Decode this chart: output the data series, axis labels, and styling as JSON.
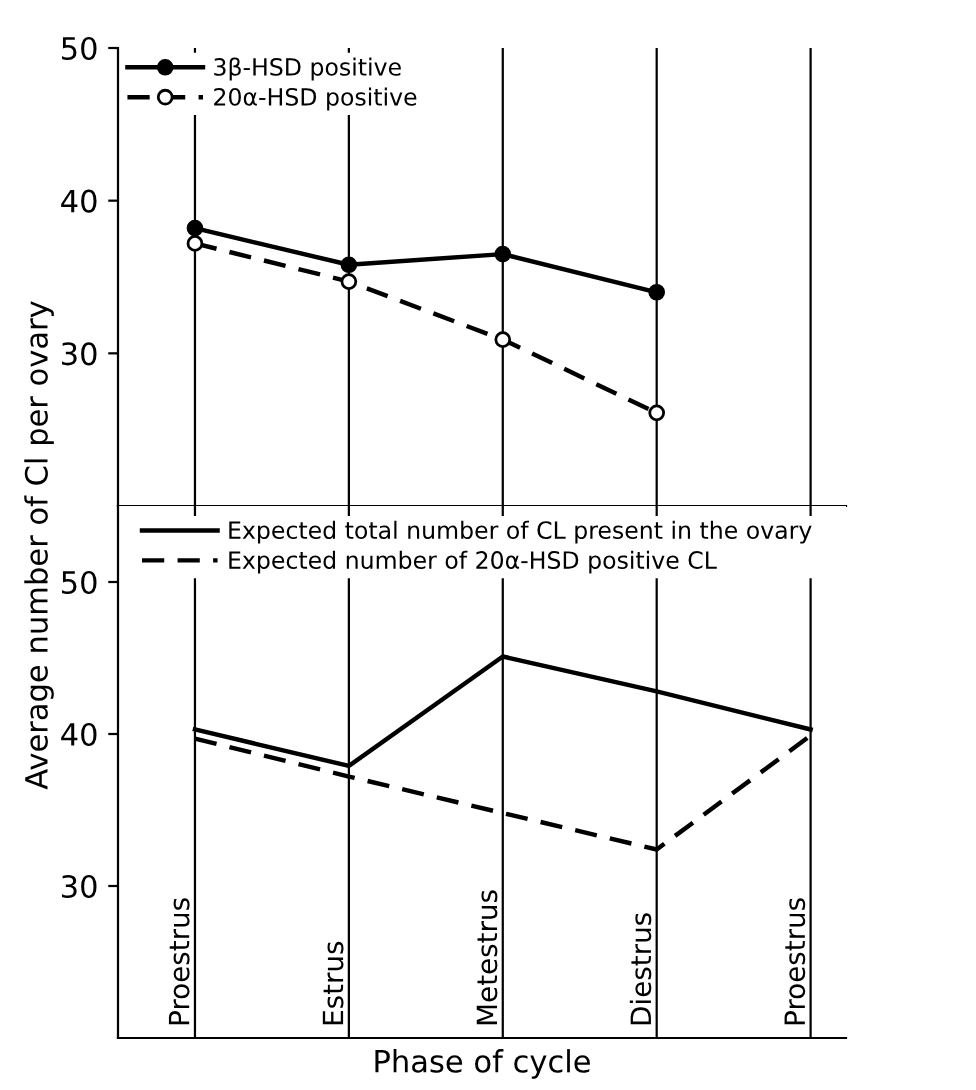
{
  "chart_data": [
    {
      "type": "line",
      "categories": [
        null,
        null,
        null,
        null,
        null
      ],
      "ylim": [
        20,
        50
      ],
      "yticks": [
        30,
        40,
        50
      ],
      "tick_labels": "y",
      "grid": "x",
      "legend": "top left",
      "marker": "circle",
      "series": [
        {
          "name": "3β-HSD positive",
          "color": "#000000",
          "line_style": "solid",
          "values": [
            38.2,
            35.8,
            36.5,
            34.0,
            null
          ]
        },
        {
          "name": "20α-HSD positive",
          "color": "#000000",
          "line_style": "dashed",
          "values": [
            37.2,
            34.7,
            30.9,
            26.1,
            null
          ]
        }
      ]
    },
    {
      "type": "line",
      "categories": [
        "Proestrus",
        "Estrus",
        "Metestrus",
        "Diestrus",
        "Proestrus"
      ],
      "ylim": [
        20,
        55
      ],
      "yticks": [
        30,
        40,
        50
      ],
      "xlabel": "Phase of cycle",
      "ylabel": "Average number of Cl per ovary",
      "grid": "x",
      "legend": "top",
      "marker": "none",
      "series": [
        {
          "name": "Expected total number of CL present in the ovary",
          "color": "#000000",
          "line_style": "solid",
          "values": [
            40.3,
            37.9,
            45.1,
            42.8,
            40.3
          ]
        },
        {
          "name": "Expected number of 20α-HSD positive CL",
          "color": "#000000",
          "line_style": "dashed",
          "values": [
            39.7,
            37.2,
            34.8,
            32.4,
            39.9
          ]
        }
      ]
    }
  ]
}
